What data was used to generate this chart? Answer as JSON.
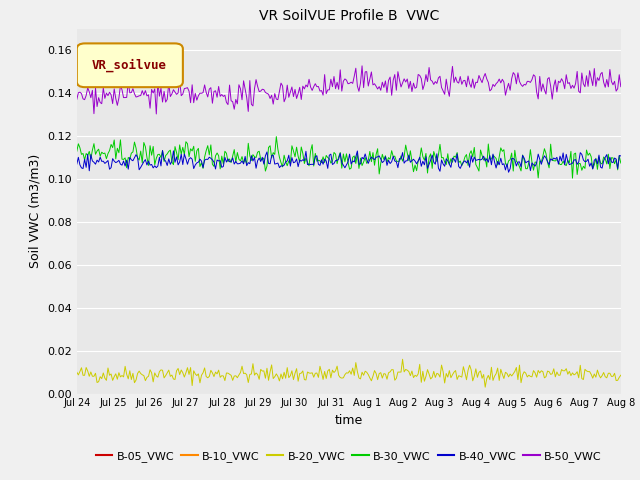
{
  "title": "VR SoilVUE Profile B  VWC",
  "xlabel": "time",
  "ylabel": "Soil VWC (m3/m3)",
  "ylim": [
    0.0,
    0.17
  ],
  "yticks": [
    0.0,
    0.02,
    0.04,
    0.06,
    0.08,
    0.1,
    0.12,
    0.14,
    0.16
  ],
  "n_points": 350,
  "series": {
    "B-05_VWC": {
      "color": "#cc0000",
      "base": 0.0,
      "noise": 5e-05
    },
    "B-10_VWC": {
      "color": "#ff8800",
      "base": 0.0,
      "noise": 5e-05
    },
    "B-20_VWC": {
      "color": "#cccc00",
      "base": 0.009,
      "noise": 0.002
    },
    "B-30_VWC": {
      "color": "#00cc00",
      "base": 0.112,
      "noise": 0.003
    },
    "B-40_VWC": {
      "color": "#0000cc",
      "base": 0.108,
      "noise": 0.002
    },
    "B-50_VWC": {
      "color": "#9900cc",
      "base": 0.139,
      "noise": 0.003
    }
  },
  "legend_label": "VR_soilvue",
  "legend_box_facecolor": "#ffffcc",
  "legend_box_edgecolor": "#cc8800",
  "legend_text_color": "#880000",
  "ax_bg_color": "#e8e8e8",
  "fig_bg_color": "#f0f0f0",
  "tick_labels": [
    "Jul 24",
    "Jul 25",
    "Jul 26",
    "Jul 27",
    "Jul 28",
    "Jul 29",
    "Jul 30",
    "Jul 31",
    "Aug 1",
    "Aug 2",
    "Aug 3",
    "Aug 4",
    "Aug 5",
    "Aug 6",
    "Aug 7",
    "Aug 8"
  ]
}
